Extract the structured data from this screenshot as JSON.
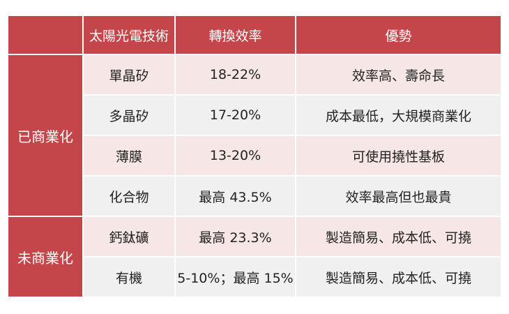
{
  "header": {
    "corner": "",
    "col_tech": "太陽光電技術",
    "col_efficiency": "轉換效率",
    "col_advantage": "優勢"
  },
  "groups": [
    {
      "label": "已商業化",
      "rows": [
        {
          "tech": "單晶矽",
          "efficiency": "18-22%",
          "advantage": "效率高、壽命長"
        },
        {
          "tech": "多晶矽",
          "efficiency": "17-20%",
          "advantage": "成本最低，大規模商業化"
        },
        {
          "tech": "薄膜",
          "efficiency": "13-20%",
          "advantage": "可使用撓性基板"
        },
        {
          "tech": "化合物",
          "efficiency": "最高 43.5%",
          "advantage": "效率最高但也最貴"
        }
      ]
    },
    {
      "label": "未商業化",
      "rows": [
        {
          "tech": "鈣鈦礦",
          "efficiency": "最高 23.3%",
          "advantage": "製造簡易、成本低、可撓"
        },
        {
          "tech": "有機",
          "efficiency": "5-10%；最高 15%",
          "advantage": "製造簡易、成本低、可撓"
        }
      ]
    }
  ]
}
